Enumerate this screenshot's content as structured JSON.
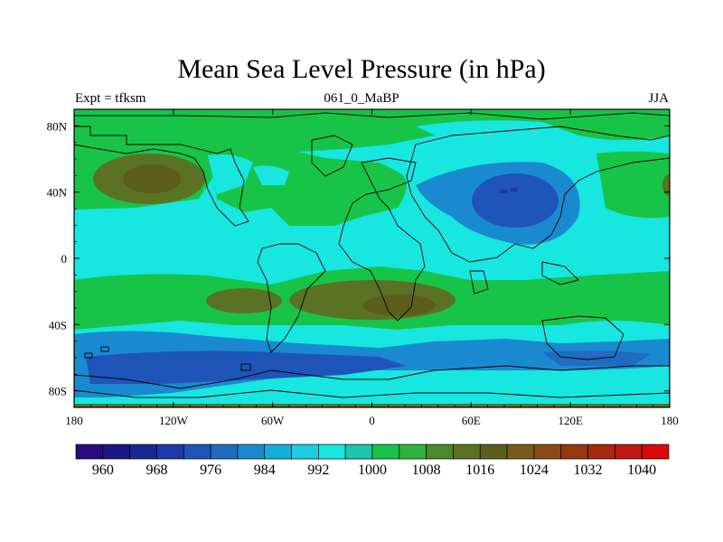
{
  "title": "Mean Sea Level Pressure (in hPa)",
  "subtitle_left": "Expt = tfksm",
  "subtitle_center": "061_0_MaBP",
  "subtitle_right": "JJA",
  "axes": {
    "x_ticks": [
      "180",
      "120W",
      "60W",
      "0",
      "60E",
      "120E",
      "180"
    ],
    "y_ticks": [
      "80N",
      "40N",
      "0",
      "40S",
      "80S"
    ]
  },
  "colorbar": {
    "colors": [
      "#2b0a7f",
      "#1a1886",
      "#1a2694",
      "#1d3aa6",
      "#1f54b8",
      "#1f6cc2",
      "#1a8ad0",
      "#14aedd",
      "#1acfe0",
      "#18e6e0",
      "#18c8a8",
      "#18c448",
      "#2fb23e",
      "#4a8a2c",
      "#5a7224",
      "#5c5e1c",
      "#7a5a1a",
      "#8a4a18",
      "#963810",
      "#a82810",
      "#c01810",
      "#d80a0a"
    ],
    "labels": [
      "960",
      "968",
      "976",
      "984",
      "992",
      "1000",
      "1008",
      "1016",
      "1024",
      "1032",
      "1040"
    ]
  }
}
